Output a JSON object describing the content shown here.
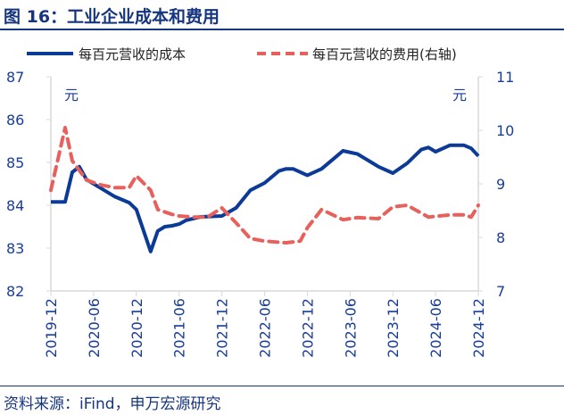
{
  "title": "图 16：工业企业成本和费用",
  "source": "资料来源：iFind，申万宏源研究",
  "chart_data": {
    "type": "line",
    "title": "",
    "left_unit": "元",
    "right_unit": "元",
    "left_ylim": [
      82,
      87
    ],
    "right_ylim": [
      7,
      11
    ],
    "left_yticks": [
      "82",
      "83",
      "84",
      "85",
      "86",
      "87"
    ],
    "right_yticks": [
      "7",
      "8",
      "9",
      "10",
      "11"
    ],
    "xlim": [
      "2019-12",
      "2024-12"
    ],
    "xticks": [
      "2019-12",
      "2020-06",
      "2020-12",
      "2021-06",
      "2021-12",
      "2022-06",
      "2022-12",
      "2023-06",
      "2023-12",
      "2024-06",
      "2024-12"
    ],
    "legend_position": "top",
    "grid": false,
    "series": [
      {
        "name": "每百元营收的成本",
        "axis": "left",
        "style": "solid",
        "color": "#0b3a97",
        "points": [
          [
            "2019-12",
            84.08
          ],
          [
            "2020-02",
            84.08
          ],
          [
            "2020-03",
            84.77
          ],
          [
            "2020-04",
            84.9
          ],
          [
            "2020-05",
            84.6
          ],
          [
            "2020-07",
            84.4
          ],
          [
            "2020-09",
            84.2
          ],
          [
            "2020-11",
            84.06
          ],
          [
            "2020-12",
            83.9
          ],
          [
            "2021-02",
            82.92
          ],
          [
            "2021-03",
            83.4
          ],
          [
            "2021-04",
            83.5
          ],
          [
            "2021-05",
            83.52
          ],
          [
            "2021-06",
            83.56
          ],
          [
            "2021-07",
            83.65
          ],
          [
            "2021-09",
            83.73
          ],
          [
            "2021-12",
            83.75
          ],
          [
            "2022-02",
            83.94
          ],
          [
            "2022-04",
            84.35
          ],
          [
            "2022-06",
            84.52
          ],
          [
            "2022-08",
            84.8
          ],
          [
            "2022-09",
            84.85
          ],
          [
            "2022-10",
            84.85
          ],
          [
            "2022-12",
            84.7
          ],
          [
            "2023-02",
            84.85
          ],
          [
            "2023-05",
            85.27
          ],
          [
            "2023-07",
            85.2
          ],
          [
            "2023-08",
            85.1
          ],
          [
            "2023-09",
            85.0
          ],
          [
            "2023-10",
            84.9
          ],
          [
            "2023-12",
            84.75
          ],
          [
            "2024-02",
            84.98
          ],
          [
            "2024-04",
            85.3
          ],
          [
            "2024-05",
            85.35
          ],
          [
            "2024-06",
            85.25
          ],
          [
            "2024-08",
            85.4
          ],
          [
            "2024-10",
            85.4
          ],
          [
            "2024-11",
            85.33
          ],
          [
            "2024-12",
            85.15
          ]
        ]
      },
      {
        "name": "每百元营收的费用(右轴)",
        "axis": "right",
        "style": "dashed",
        "color": "#e8605c",
        "points": [
          [
            "2019-12",
            8.88
          ],
          [
            "2020-02",
            10.05
          ],
          [
            "2020-03",
            9.43
          ],
          [
            "2020-05",
            9.07
          ],
          [
            "2020-07",
            8.98
          ],
          [
            "2020-09",
            8.93
          ],
          [
            "2020-11",
            8.93
          ],
          [
            "2020-12",
            9.15
          ],
          [
            "2021-02",
            8.88
          ],
          [
            "2021-03",
            8.52
          ],
          [
            "2021-05",
            8.43
          ],
          [
            "2021-06",
            8.4
          ],
          [
            "2021-08",
            8.38
          ],
          [
            "2021-10",
            8.38
          ],
          [
            "2021-12",
            8.55
          ],
          [
            "2022-02",
            8.27
          ],
          [
            "2022-04",
            7.98
          ],
          [
            "2022-06",
            7.93
          ],
          [
            "2022-09",
            7.9
          ],
          [
            "2022-11",
            7.93
          ],
          [
            "2022-12",
            8.18
          ],
          [
            "2023-02",
            8.52
          ],
          [
            "2023-05",
            8.33
          ],
          [
            "2023-07",
            8.37
          ],
          [
            "2023-10",
            8.35
          ],
          [
            "2023-12",
            8.57
          ],
          [
            "2024-02",
            8.6
          ],
          [
            "2024-05",
            8.38
          ],
          [
            "2024-08",
            8.42
          ],
          [
            "2024-10",
            8.42
          ],
          [
            "2024-11",
            8.38
          ],
          [
            "2024-12",
            8.6
          ]
        ]
      }
    ]
  }
}
